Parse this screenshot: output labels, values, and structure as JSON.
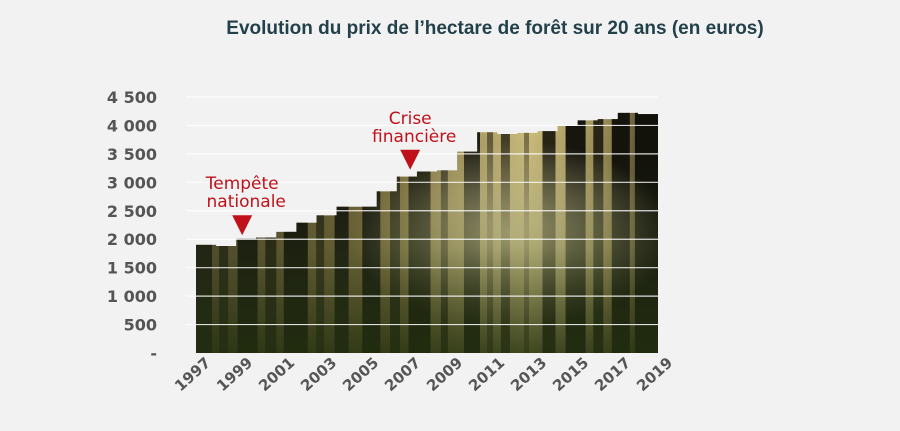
{
  "chart_data": {
    "type": "area",
    "title": "Evolution du prix de l’hectare de forêt sur 20 ans (en euros)",
    "xlabel": "",
    "ylabel": "",
    "x": [
      1997,
      1998,
      1999,
      2000,
      2001,
      2002,
      2003,
      2004,
      2005,
      2006,
      2007,
      2008,
      2009,
      2010,
      2011,
      2012,
      2013,
      2014,
      2015,
      2016,
      2017,
      2018,
      2019
    ],
    "values": [
      1900,
      1880,
      2010,
      2030,
      2130,
      2290,
      2420,
      2570,
      2570,
      2840,
      3100,
      3190,
      3210,
      3540,
      3880,
      3850,
      3870,
      3900,
      3990,
      4090,
      4110,
      4220,
      4200
    ],
    "ylim": [
      0,
      4500
    ],
    "y_ticks": [
      "-",
      "500",
      "1 000",
      "1 500",
      "2 000",
      "2 500",
      "3 000",
      "3 500",
      "4 000",
      "4 500"
    ],
    "x_ticks": [
      "1997",
      "1999",
      "2001",
      "2003",
      "2005",
      "2007",
      "2009",
      "2011",
      "2013",
      "2015",
      "2017",
      "2019"
    ],
    "grid": true,
    "fill": "forest photograph",
    "annotations": [
      {
        "lines": [
          "Tempête",
          "nationale"
        ],
        "x": 1999.2,
        "y": 2000
      },
      {
        "lines": [
          "Crise",
          "financière"
        ],
        "x": 2007.2,
        "y": 3150
      }
    ],
    "colors": {
      "annotation": "#c0111b",
      "title": "#23414a",
      "ticks": "#555555",
      "grid": "#ffffff"
    }
  }
}
